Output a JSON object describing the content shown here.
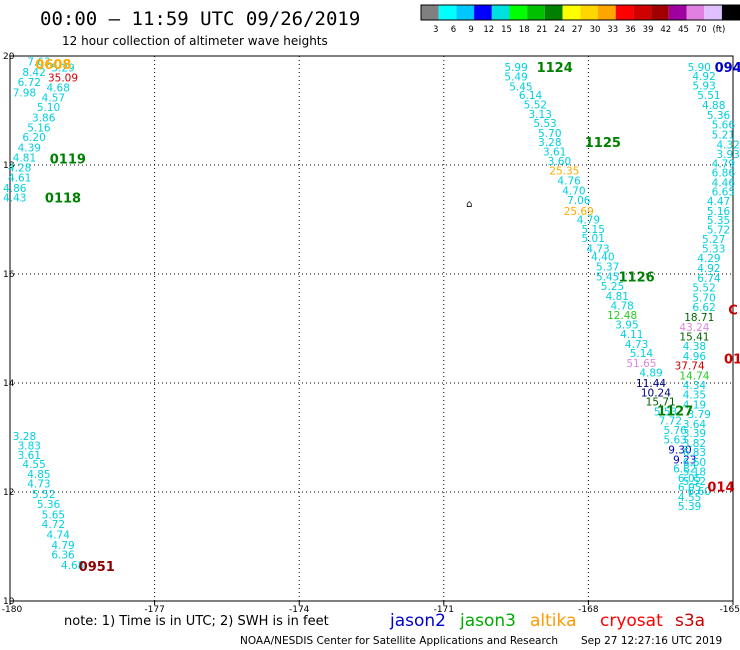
{
  "header": {
    "title": "00:00 – 11:59 UTC 09/26/2019",
    "subtitle": "12 hour collection of altimeter wave heights"
  },
  "colorbar": {
    "labels": [
      "3",
      "6",
      "9",
      "12",
      "15",
      "18",
      "21",
      "24",
      "27",
      "30",
      "33",
      "36",
      "39",
      "42",
      "45",
      "70",
      "(ft)"
    ],
    "colors": [
      "#808080",
      "#00ffff",
      "#00c8ff",
      "#0000ff",
      "#00e0e0",
      "#00ff00",
      "#00c000",
      "#008000",
      "#ffff00",
      "#ffd700",
      "#ffa500",
      "#ff0000",
      "#d00000",
      "#a00000",
      "#a000a0",
      "#e080e0",
      "#e0c0ff",
      "#000000"
    ]
  },
  "footer": {
    "note": "note:  1) Time is in UTC;  2) SWH is in feet",
    "credit": "NOAA/NESDIS Center for Satellite Applications and Research",
    "timestamp": "Sep 27 12:27:16 UTC 2019"
  },
  "legend": [
    {
      "name": "jason2",
      "color": "#0000cc"
    },
    {
      "name": "jason3",
      "color": "#00aa00"
    },
    {
      "name": "altika",
      "color": "#ff9900"
    },
    {
      "name": "cryosat",
      "color": "#ff0000"
    },
    {
      "name": "s3a",
      "color": "#cc0000"
    }
  ],
  "chart_data": {
    "type": "scatter",
    "xlim": [
      -180,
      -165
    ],
    "ylim": [
      10,
      20
    ],
    "x_ticks": [
      "-180",
      "-177",
      "-174",
      "-171",
      "-168",
      "-165"
    ],
    "x_tick_values": [
      -180,
      -177,
      -174,
      -171,
      -168,
      -165
    ],
    "y_ticks": [
      "10",
      "12",
      "14",
      "16",
      "18",
      "20"
    ],
    "y_tick_values": [
      10,
      12,
      14,
      16,
      18,
      20
    ],
    "grid": true,
    "colors": {
      "c": "#00d0e0",
      "o": "#ffaa00",
      "r": "#cc0000",
      "g": "#22cc22",
      "v": "#dd88dd",
      "n": "#000080",
      "d": "#006400",
      "b": "#0000cc",
      "R": "#ff0000"
    },
    "series": [
      {
        "points": [
          [
            -179.4,
            19.9,
            "7.63",
            "c"
          ],
          [
            -179.5,
            19.71,
            "8.42",
            "c"
          ],
          [
            -179.6,
            19.52,
            "6.72",
            "c"
          ],
          [
            -179.7,
            19.33,
            "7.98",
            "c"
          ],
          [
            -178.9,
            19.79,
            "5.29",
            "c"
          ],
          [
            -178.9,
            19.61,
            "35.09",
            "r"
          ],
          [
            -179.0,
            19.42,
            "4.68",
            "c"
          ],
          [
            -179.1,
            19.24,
            "4.57",
            "c"
          ],
          [
            -179.2,
            19.06,
            "5.10",
            "c"
          ],
          [
            -179.3,
            18.87,
            "3.86",
            "c"
          ],
          [
            -179.4,
            18.69,
            "5.16",
            "c"
          ],
          [
            -179.5,
            18.51,
            "6.20",
            "c"
          ],
          [
            -179.6,
            18.32,
            "4.39",
            "c"
          ],
          [
            -179.7,
            18.14,
            "4.81",
            "c"
          ],
          [
            -179.8,
            17.95,
            "4.28",
            "c"
          ],
          [
            -179.8,
            17.77,
            "4.61",
            "c"
          ],
          [
            -179.9,
            17.58,
            "4.86",
            "c"
          ],
          [
            -179.9,
            17.4,
            "4.43",
            "c"
          ]
        ]
      },
      {
        "points": [
          [
            -179.7,
            13.03,
            "3.28",
            "c"
          ],
          [
            -179.6,
            12.85,
            "3.83",
            "c"
          ],
          [
            -179.6,
            12.68,
            "3.61",
            "c"
          ],
          [
            -179.5,
            12.51,
            "4.55",
            "c"
          ],
          [
            -179.4,
            12.33,
            "4.85",
            "c"
          ],
          [
            -179.4,
            12.16,
            "4.73",
            "c"
          ],
          [
            -179.3,
            11.96,
            "5.52",
            "c"
          ],
          [
            -179.2,
            11.78,
            "5.36",
            "c"
          ],
          [
            -179.1,
            11.59,
            "5.65",
            "c"
          ],
          [
            -179.1,
            11.41,
            "4.72",
            "c"
          ],
          [
            -179.0,
            11.22,
            "4.74",
            "c"
          ],
          [
            -178.9,
            11.03,
            "4.79",
            "c"
          ],
          [
            -178.9,
            10.85,
            "6.36",
            "c"
          ],
          [
            -178.7,
            10.66,
            "4.68",
            "c"
          ]
        ]
      },
      {
        "points": [
          [
            -169.5,
            19.8,
            "5.99",
            "c"
          ],
          [
            -169.5,
            19.62,
            "5.49",
            "c"
          ],
          [
            -169.4,
            19.44,
            "5.45",
            "c"
          ],
          [
            -169.2,
            19.28,
            "6.14",
            "c"
          ],
          [
            -169.1,
            19.11,
            "5.52",
            "c"
          ],
          [
            -169.0,
            18.94,
            "3.13",
            "c"
          ],
          [
            -168.9,
            18.77,
            "5.53",
            "c"
          ],
          [
            -168.8,
            18.59,
            "5.70",
            "c"
          ],
          [
            -168.8,
            18.42,
            "3.28",
            "c"
          ],
          [
            -168.7,
            18.25,
            "3.61",
            "c"
          ],
          [
            -168.6,
            18.07,
            "3.60",
            "c"
          ],
          [
            -168.5,
            17.9,
            "25.35",
            "o"
          ],
          [
            -168.4,
            17.72,
            "4.76",
            "c"
          ],
          [
            -168.3,
            17.53,
            "4.70",
            "c"
          ],
          [
            -168.2,
            17.36,
            "7.06",
            "c"
          ],
          [
            -168.2,
            17.16,
            "25.69",
            "o"
          ],
          [
            -168.0,
            17.0,
            "4.79",
            "c"
          ],
          [
            -167.9,
            16.83,
            "5.15",
            "c"
          ],
          [
            -167.9,
            16.66,
            "5.01",
            "c"
          ],
          [
            -167.8,
            16.47,
            "4.73",
            "c"
          ],
          [
            -167.7,
            16.32,
            "4.40",
            "c"
          ],
          [
            -167.6,
            16.14,
            "5.37",
            "c"
          ],
          [
            -167.6,
            15.95,
            "5.45",
            "c"
          ],
          [
            -167.5,
            15.78,
            "5.25",
            "c"
          ],
          [
            -167.4,
            15.6,
            "4.81",
            "c"
          ],
          [
            -167.3,
            15.42,
            "4.78",
            "c"
          ],
          [
            -167.3,
            15.25,
            "12.48",
            "g"
          ],
          [
            -167.2,
            15.07,
            "3.95",
            "c"
          ],
          [
            -167.1,
            14.9,
            "4.11",
            "c"
          ],
          [
            -167.0,
            14.72,
            "4.73",
            "c"
          ],
          [
            -166.9,
            14.55,
            "5.14",
            "c"
          ],
          [
            -166.9,
            14.37,
            "51.65",
            "v"
          ],
          [
            -166.7,
            14.19,
            "4.89",
            "c"
          ],
          [
            -166.7,
            14.0,
            "11.44",
            "n"
          ],
          [
            -166.6,
            13.83,
            "10.24",
            "n"
          ],
          [
            -166.5,
            13.66,
            "15.71",
            "d"
          ],
          [
            -166.4,
            13.48,
            "5.53",
            "c"
          ],
          [
            -166.3,
            13.31,
            "7.72",
            "c"
          ],
          [
            -166.2,
            13.14,
            "5.76",
            "c"
          ],
          [
            -166.2,
            12.96,
            "5.63",
            "c"
          ],
          [
            -166.1,
            12.78,
            "9.30",
            "b"
          ],
          [
            -166.0,
            12.6,
            "9.23",
            "b"
          ],
          [
            -166.0,
            12.43,
            "6.82",
            "c"
          ],
          [
            -165.9,
            12.26,
            "6.05",
            "c"
          ],
          [
            -165.9,
            12.09,
            "6.05",
            "c"
          ],
          [
            -165.9,
            11.91,
            "4.55",
            "c"
          ],
          [
            -165.9,
            11.74,
            "5.39",
            "c"
          ]
        ]
      },
      {
        "points": [
          [
            -165.7,
            19.8,
            "5.90",
            "c"
          ],
          [
            -165.6,
            19.63,
            "4.92",
            "c"
          ],
          [
            -165.6,
            19.46,
            "5.93",
            "c"
          ],
          [
            -165.5,
            19.28,
            "5.51",
            "c"
          ],
          [
            -165.4,
            19.1,
            "4.88",
            "c"
          ],
          [
            -165.3,
            18.92,
            "5.36",
            "c"
          ],
          [
            -165.2,
            18.74,
            "5.66",
            "c"
          ],
          [
            -165.2,
            18.56,
            "5.21",
            "c"
          ],
          [
            -165.1,
            18.38,
            "4.32",
            "c"
          ],
          [
            -165.1,
            18.2,
            "3.93",
            "c"
          ],
          [
            -165.2,
            18.03,
            "4.79",
            "c"
          ],
          [
            -165.2,
            17.86,
            "6.86",
            "c"
          ],
          [
            -165.2,
            17.68,
            "4.46",
            "c"
          ],
          [
            -165.2,
            17.51,
            "6.65",
            "c"
          ],
          [
            -165.3,
            17.34,
            "4.47",
            "c"
          ],
          [
            -165.3,
            17.16,
            "5.16",
            "c"
          ],
          [
            -165.3,
            16.99,
            "5.35",
            "c"
          ],
          [
            -165.3,
            16.82,
            "5.72",
            "c"
          ],
          [
            -165.4,
            16.64,
            "5.27",
            "c"
          ],
          [
            -165.4,
            16.47,
            "5.33",
            "c"
          ],
          [
            -165.5,
            16.29,
            "4.29",
            "c"
          ],
          [
            -165.5,
            16.11,
            "4.92",
            "c"
          ],
          [
            -165.5,
            15.93,
            "6.74",
            "c"
          ],
          [
            -165.6,
            15.75,
            "5.52",
            "c"
          ],
          [
            -165.6,
            15.57,
            "5.70",
            "c"
          ],
          [
            -165.6,
            15.39,
            "6.62",
            "c"
          ],
          [
            -165.7,
            15.21,
            "18.71",
            "d"
          ],
          [
            -165.8,
            15.03,
            "43.24",
            "v"
          ],
          [
            -165.8,
            14.85,
            "15.41",
            "d"
          ],
          [
            -165.8,
            14.68,
            "4.38",
            "c"
          ],
          [
            -165.8,
            14.5,
            "4.96",
            "c"
          ],
          [
            -165.9,
            14.32,
            "37.74",
            "r"
          ],
          [
            -165.8,
            14.14,
            "14.74",
            "g"
          ],
          [
            -165.8,
            13.96,
            "4.34",
            "c"
          ],
          [
            -165.8,
            13.79,
            "4.35",
            "c"
          ],
          [
            -165.8,
            13.61,
            "4.19",
            "c"
          ],
          [
            -165.7,
            13.43,
            "3.79",
            "c"
          ],
          [
            -165.8,
            13.25,
            "3.64",
            "c"
          ],
          [
            -165.8,
            13.08,
            "3.39",
            "c"
          ],
          [
            -165.8,
            12.9,
            "3.82",
            "c"
          ],
          [
            -165.8,
            12.73,
            "6.83",
            "c"
          ],
          [
            -165.8,
            12.55,
            "6.60",
            "c"
          ],
          [
            -165.8,
            12.38,
            "5.18",
            "c"
          ],
          [
            -165.8,
            12.2,
            "5.52",
            "c"
          ],
          [
            -165.7,
            12.02,
            "6.60",
            "c"
          ]
        ]
      }
    ],
    "pass_labels": [
      {
        "text": "0608",
        "x": -179.1,
        "y": 19.85,
        "color": "#ffaa00"
      },
      {
        "text": "0119",
        "x": -178.8,
        "y": 18.12,
        "color": "#008000"
      },
      {
        "text": "0118",
        "x": -178.9,
        "y": 17.4,
        "color": "#008000"
      },
      {
        "text": "0951",
        "x": -178.2,
        "y": 10.64,
        "color": "#8b0000"
      },
      {
        "text": "1124",
        "x": -168.7,
        "y": 19.8,
        "color": "#008000"
      },
      {
        "text": "1125",
        "x": -167.7,
        "y": 18.42,
        "color": "#008000"
      },
      {
        "text": "1126",
        "x": -167.0,
        "y": 15.95,
        "color": "#008000"
      },
      {
        "text": "1127",
        "x": -166.2,
        "y": 13.5,
        "color": "#008000"
      },
      {
        "text": "094",
        "x": -165.1,
        "y": 19.8,
        "color": "#0000cc"
      },
      {
        "text": "014",
        "x": -165.25,
        "y": 12.1,
        "color": "#cc0000"
      },
      {
        "text": "C",
        "x": -165.0,
        "y": 15.35,
        "color": "#cc0000"
      },
      {
        "text": "01",
        "x": -165.0,
        "y": 14.45,
        "color": "#cc0000"
      }
    ],
    "markers": [
      {
        "symbol": "⌂",
        "x": -170.47,
        "y": 17.3
      }
    ]
  }
}
